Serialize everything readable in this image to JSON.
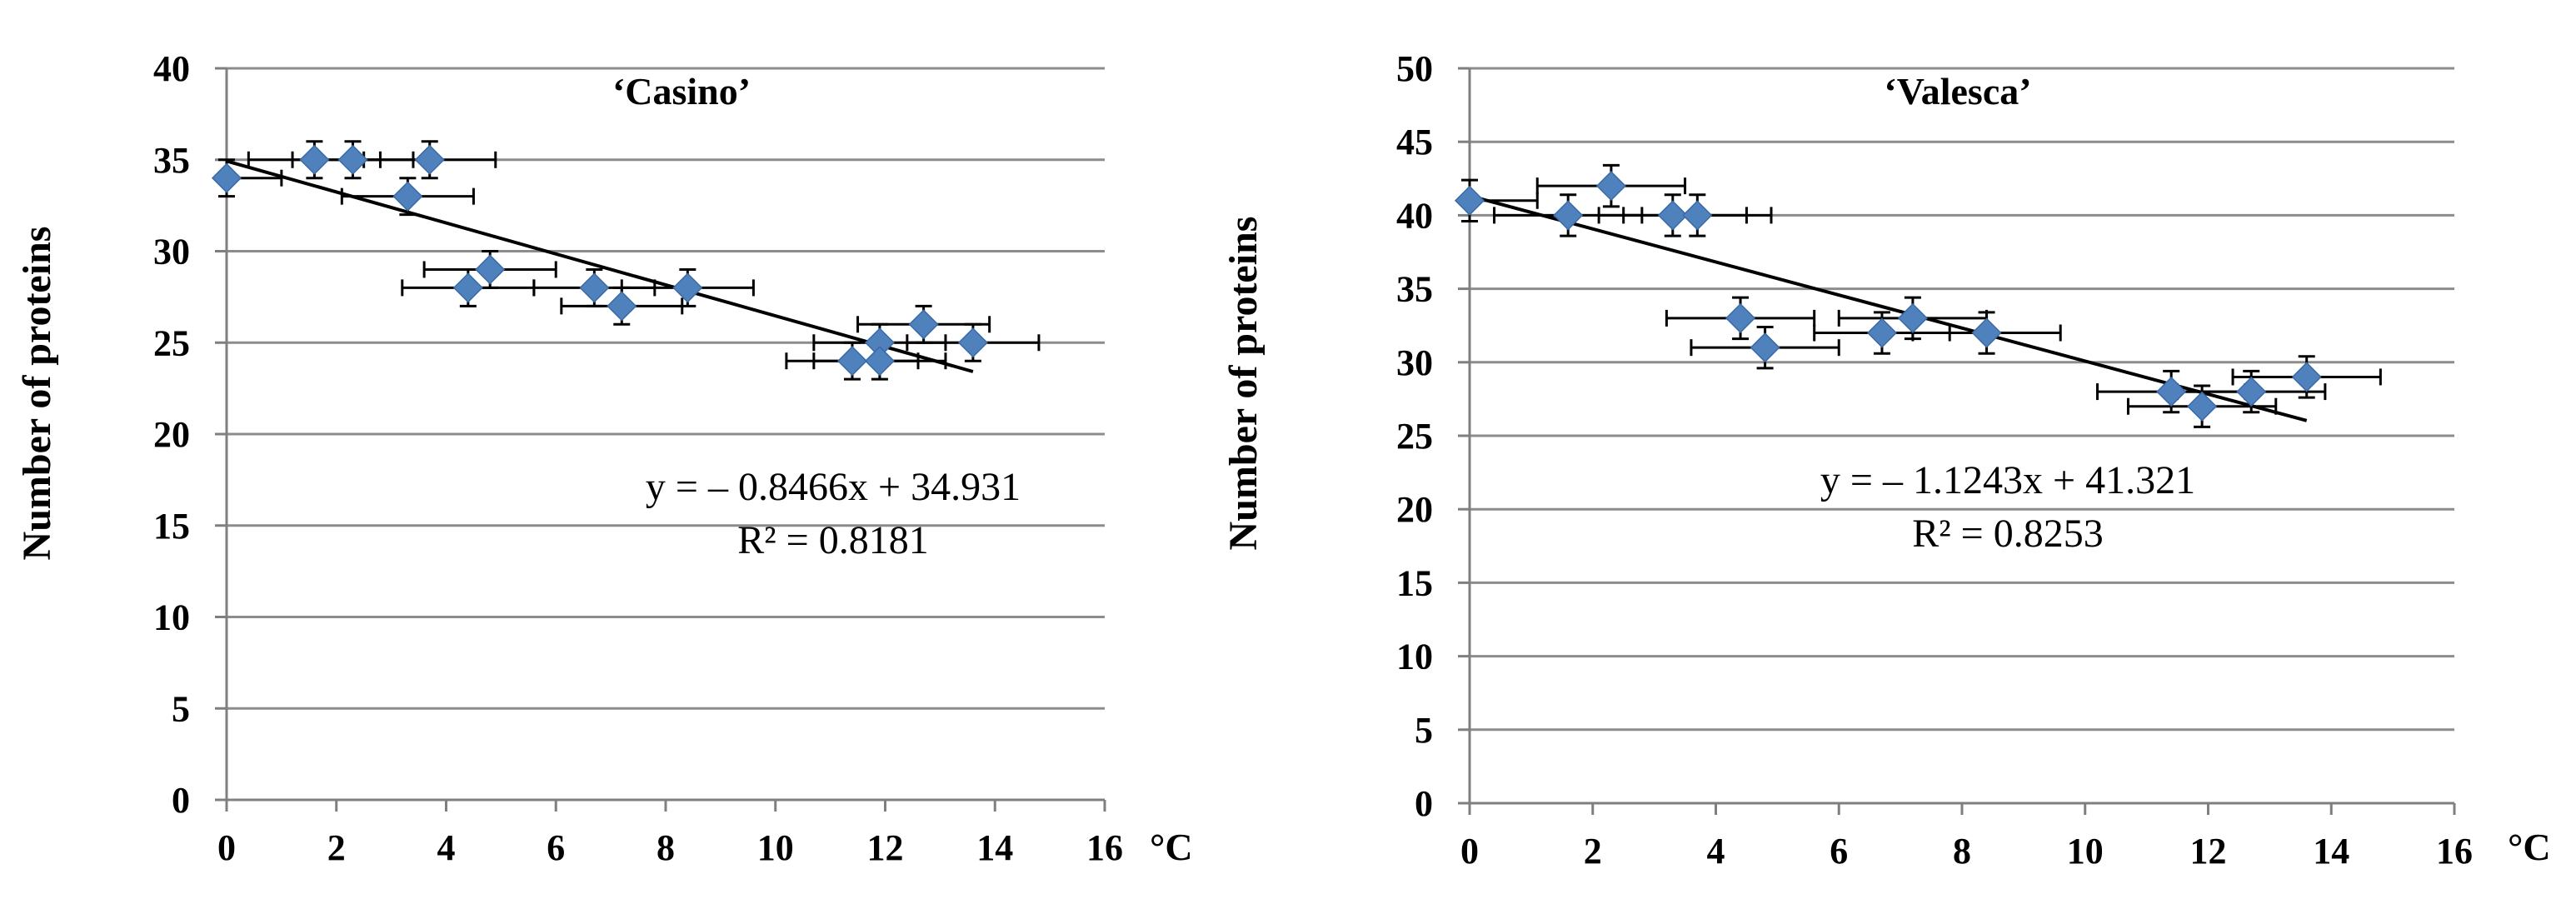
{
  "chart_data": [
    {
      "type": "scatter",
      "title": "‘Casino’",
      "xlabel": "°C",
      "ylabel": "Number of proteins",
      "xlim": [
        0,
        16
      ],
      "ylim": [
        0,
        40
      ],
      "x_ticks": [
        0,
        2,
        4,
        6,
        8,
        10,
        12,
        14,
        16
      ],
      "y_ticks": [
        0,
        5,
        10,
        15,
        20,
        25,
        30,
        35,
        40
      ],
      "grid": "horizontal",
      "marker_color": "#4F81BD",
      "series": [
        {
          "name": "Casino",
          "points": [
            {
              "x": 0.0,
              "y": 34,
              "xerr": 1.0,
              "yerr": 1.0
            },
            {
              "x": 1.6,
              "y": 35,
              "xerr": 1.2,
              "yerr": 1.0
            },
            {
              "x": 2.3,
              "y": 35,
              "xerr": 1.1,
              "yerr": 1.0
            },
            {
              "x": 3.3,
              "y": 33,
              "xerr": 1.2,
              "yerr": 1.0
            },
            {
              "x": 3.7,
              "y": 35,
              "xerr": 1.2,
              "yerr": 1.0
            },
            {
              "x": 4.4,
              "y": 28,
              "xerr": 1.2,
              "yerr": 1.0
            },
            {
              "x": 4.8,
              "y": 29,
              "xerr": 1.2,
              "yerr": 1.0
            },
            {
              "x": 6.7,
              "y": 28,
              "xerr": 1.1,
              "yerr": 1.0
            },
            {
              "x": 7.2,
              "y": 27,
              "xerr": 1.1,
              "yerr": 1.0
            },
            {
              "x": 8.4,
              "y": 28,
              "xerr": 1.2,
              "yerr": 1.0
            },
            {
              "x": 11.4,
              "y": 24,
              "xerr": 1.2,
              "yerr": 1.0
            },
            {
              "x": 11.9,
              "y": 25,
              "xerr": 1.2,
              "yerr": 1.0
            },
            {
              "x": 11.9,
              "y": 24,
              "xerr": 1.2,
              "yerr": 1.0
            },
            {
              "x": 12.7,
              "y": 26,
              "xerr": 1.2,
              "yerr": 1.0
            },
            {
              "x": 13.6,
              "y": 25,
              "xerr": 1.2,
              "yerr": 1.0
            }
          ]
        }
      ],
      "trendline": {
        "slope": -0.8466,
        "intercept": 34.931,
        "x_range": [
          0,
          13.6
        ]
      },
      "equation_label": "y = – 0.8466x + 34.931",
      "r2_label": "R² = 0.8181"
    },
    {
      "type": "scatter",
      "title": "‘Valesca’",
      "xlabel": "°C",
      "ylabel": "Number of proteins",
      "xlim": [
        0,
        16
      ],
      "ylim": [
        0,
        50
      ],
      "x_ticks": [
        0,
        2,
        4,
        6,
        8,
        10,
        12,
        14,
        16
      ],
      "y_ticks": [
        0,
        5,
        10,
        15,
        20,
        25,
        30,
        35,
        40,
        45,
        50
      ],
      "grid": "horizontal",
      "marker_color": "#4F81BD",
      "series": [
        {
          "name": "Valesca",
          "points": [
            {
              "x": 0.0,
              "y": 41,
              "xerr": 1.1,
              "yerr": 1.4
            },
            {
              "x": 1.6,
              "y": 40,
              "xerr": 1.2,
              "yerr": 1.4
            },
            {
              "x": 2.3,
              "y": 42,
              "xerr": 1.2,
              "yerr": 1.4
            },
            {
              "x": 3.3,
              "y": 40,
              "xerr": 1.2,
              "yerr": 1.4
            },
            {
              "x": 3.7,
              "y": 40,
              "xerr": 1.2,
              "yerr": 1.4
            },
            {
              "x": 4.4,
              "y": 33,
              "xerr": 1.2,
              "yerr": 1.4
            },
            {
              "x": 4.8,
              "y": 31,
              "xerr": 1.2,
              "yerr": 1.4
            },
            {
              "x": 6.7,
              "y": 32,
              "xerr": 1.1,
              "yerr": 1.4
            },
            {
              "x": 7.2,
              "y": 33,
              "xerr": 1.2,
              "yerr": 1.4
            },
            {
              "x": 8.4,
              "y": 32,
              "xerr": 1.2,
              "yerr": 1.4
            },
            {
              "x": 11.4,
              "y": 28,
              "xerr": 1.2,
              "yerr": 1.4
            },
            {
              "x": 11.9,
              "y": 27,
              "xerr": 1.2,
              "yerr": 1.4
            },
            {
              "x": 12.7,
              "y": 28,
              "xerr": 1.2,
              "yerr": 1.4
            },
            {
              "x": 13.6,
              "y": 29,
              "xerr": 1.2,
              "yerr": 1.4
            }
          ]
        }
      ],
      "trendline": {
        "slope": -1.1243,
        "intercept": 41.321,
        "x_range": [
          0,
          13.6
        ]
      },
      "equation_label": "y = – 1.1243x + 41.321",
      "r2_label": "R² = 0.8253"
    }
  ]
}
